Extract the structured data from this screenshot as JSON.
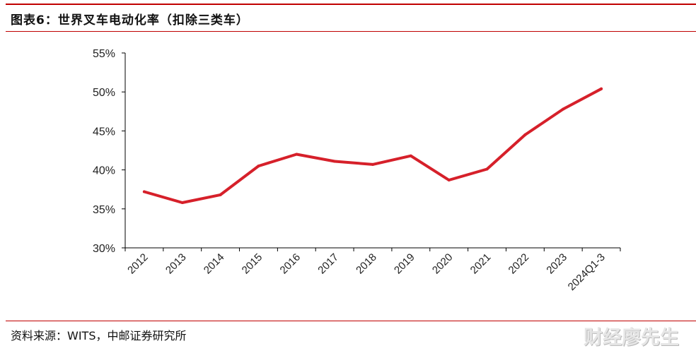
{
  "header": {
    "title": "图表6：世界叉车电动化率（扣除三类车）"
  },
  "footer": {
    "source": "资料来源：WITS，中邮证券研究所",
    "watermark": "财经廖先生"
  },
  "colors": {
    "accent_rule": "#c00000",
    "line": "#d6202a",
    "axis": "#000000"
  },
  "chart_data": {
    "type": "line",
    "title": "",
    "xlabel": "",
    "ylabel": "",
    "categories": [
      "2012",
      "2013",
      "2014",
      "2015",
      "2016",
      "2017",
      "2018",
      "2019",
      "2020",
      "2021",
      "2022",
      "2023",
      "2024Q1-3"
    ],
    "series": [
      {
        "values": [
          37.2,
          35.8,
          36.8,
          40.5,
          42.0,
          41.1,
          40.7,
          41.8,
          38.7,
          40.1,
          44.5,
          47.8,
          50.4
        ]
      }
    ],
    "ylim": [
      30,
      55
    ],
    "yticks": [
      30,
      35,
      40,
      45,
      50,
      55
    ],
    "ytick_labels": [
      "30%",
      "35%",
      "40%",
      "45%",
      "50%",
      "55%"
    ],
    "grid": false,
    "legend": "none"
  }
}
